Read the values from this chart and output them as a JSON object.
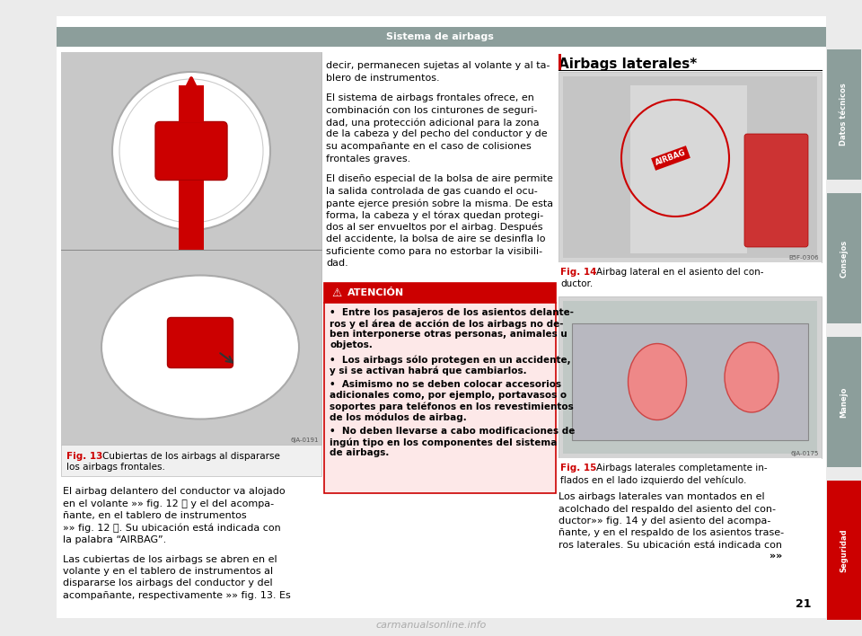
{
  "title": "Sistema de airbags",
  "page_number": "21",
  "bg_color": "#ebebeb",
  "white": "#ffffff",
  "header_bar_color": "#8c9e9b",
  "header_text": "Sistema de airbags",
  "sidebar_sections": [
    {
      "label": "Datos técnicos",
      "color": "#8c9e9b"
    },
    {
      "label": "Consejos",
      "color": "#8c9e9b"
    },
    {
      "label": "Manejo",
      "color": "#8c9e9b"
    },
    {
      "label": "Seguridad",
      "color": "#cc0000"
    }
  ],
  "fig13_caption_bold": "Fig. 13",
  "fig13_caption_rest": "  Cubiertas de los airbags al dispararse\nlos airbags frontales.",
  "fig14_caption_bold": "Fig. 14",
  "fig14_caption_rest": "  Airbag lateral en el asiento del con-\nductor.",
  "fig15_caption_bold": "Fig. 15",
  "fig15_caption_rest": "  Airbags laterales completamente in-\nflados en el lado izquierdo del vehículo.",
  "airbags_laterales_title": "Airbags laterales*",
  "left_body_paragraphs": [
    "El airbag delantero del conductor va alojado\nen el volante »» fig. 12 Ⓐ y el del acompa-\nñante, en el tablero de instrumentos\n»» fig. 12 Ⓑ. Su ubicación está indicada con\nla palabra “AIRBAG”.",
    "Las cubiertas de los airbags se abren en el\nvolante y en el tablero de instrumentos al\ndispararse los airbags del conductor y del\nacompañante, respectivamente »» fig. 13. Es"
  ],
  "center_text_paragraphs": [
    "decir, permanecen sujetas al volante y al ta-\nblero de instrumentos.",
    "El sistema de airbags frontales ofrece, en\ncombinación con los cinturones de seguri-\ndad, una protección adicional para la zona\nde la cabeza y del pecho del conductor y de\nsu acompañante en el caso de colisiones\nfrontales graves.",
    "El diseño especial de la bolsa de aire permite\nla salida controlada de gas cuando el ocu-\npante ejerce presión sobre la misma. De esta\nforma, la cabeza y el tórax quedan protegi-\ndos al ser envueltos por el airbag. Después\ndel accidente, la bolsa de aire se desinfla lo\nsuficiente como para no estorbar la visibili-\ndad."
  ],
  "atention_title": "ATENCIÓN",
  "atention_paragraphs": [
    "•  Entre los pasajeros de los asientos delante-\nros y el área de acción de los airbags no de-\nben interponerse otras personas, animales u\nobjetos.",
    "•  Los airbags sólo protegen en un accidente,\ny si se activan habrá que cambiarlos.",
    "•  Asimismo no se deben colocar accesorios\nadicionales como, por ejemplo, portavasos o\nsoportes para teléfonos en los revestimientos\nde los módulos de airbag.",
    "•  No deben llevarse a cabo modificaciones de\ningún tipo en los componentes del sistema\nde airbags."
  ],
  "right_bottom_text": "Los airbags laterales van montados en el\nacolchado del respaldo del asiento del con-\nductor»» fig. 14 y del asiento del acompa-\nñante, y en el respaldo de los asientos trase-\nros laterales. Su ubicación está indicada con",
  "right_arrow": "»»",
  "watermark": "carmanualsonline.info",
  "red": "#cc0000",
  "fig_id_13": "6JA-0191",
  "fig_id_14": "B5F-0306",
  "fig_id_15": "6JA-0175",
  "atention_bg": "#fde8e8",
  "atention_header_bg": "#cc0000",
  "img_bg": "#d4d4d4"
}
